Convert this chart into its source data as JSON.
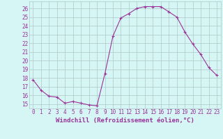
{
  "x": [
    0,
    1,
    2,
    3,
    4,
    5,
    6,
    7,
    8,
    9,
    10,
    11,
    12,
    13,
    14,
    15,
    16,
    17,
    18,
    19,
    20,
    21,
    22,
    23
  ],
  "y": [
    17.8,
    16.6,
    15.9,
    15.8,
    15.1,
    15.3,
    15.1,
    14.9,
    14.8,
    18.5,
    22.8,
    24.9,
    25.4,
    26.0,
    26.2,
    26.2,
    26.2,
    25.6,
    25.0,
    23.3,
    21.9,
    20.7,
    19.2,
    18.3
  ],
  "line_color": "#993399",
  "marker": "+",
  "bg_color": "#d6f5f5",
  "grid_color": "#b0c8c8",
  "xlabel": "Windchill (Refroidissement éolien,°C)",
  "xlim": [
    -0.5,
    23.5
  ],
  "ylim": [
    14.5,
    26.8
  ],
  "yticks": [
    15,
    16,
    17,
    18,
    19,
    20,
    21,
    22,
    23,
    24,
    25,
    26
  ],
  "xticks": [
    0,
    1,
    2,
    3,
    4,
    5,
    6,
    7,
    8,
    9,
    10,
    11,
    12,
    13,
    14,
    15,
    16,
    17,
    18,
    19,
    20,
    21,
    22,
    23
  ],
  "tick_fontsize": 5.5,
  "xlabel_fontsize": 6.5,
  "marker_size": 2.5,
  "line_width": 0.8
}
